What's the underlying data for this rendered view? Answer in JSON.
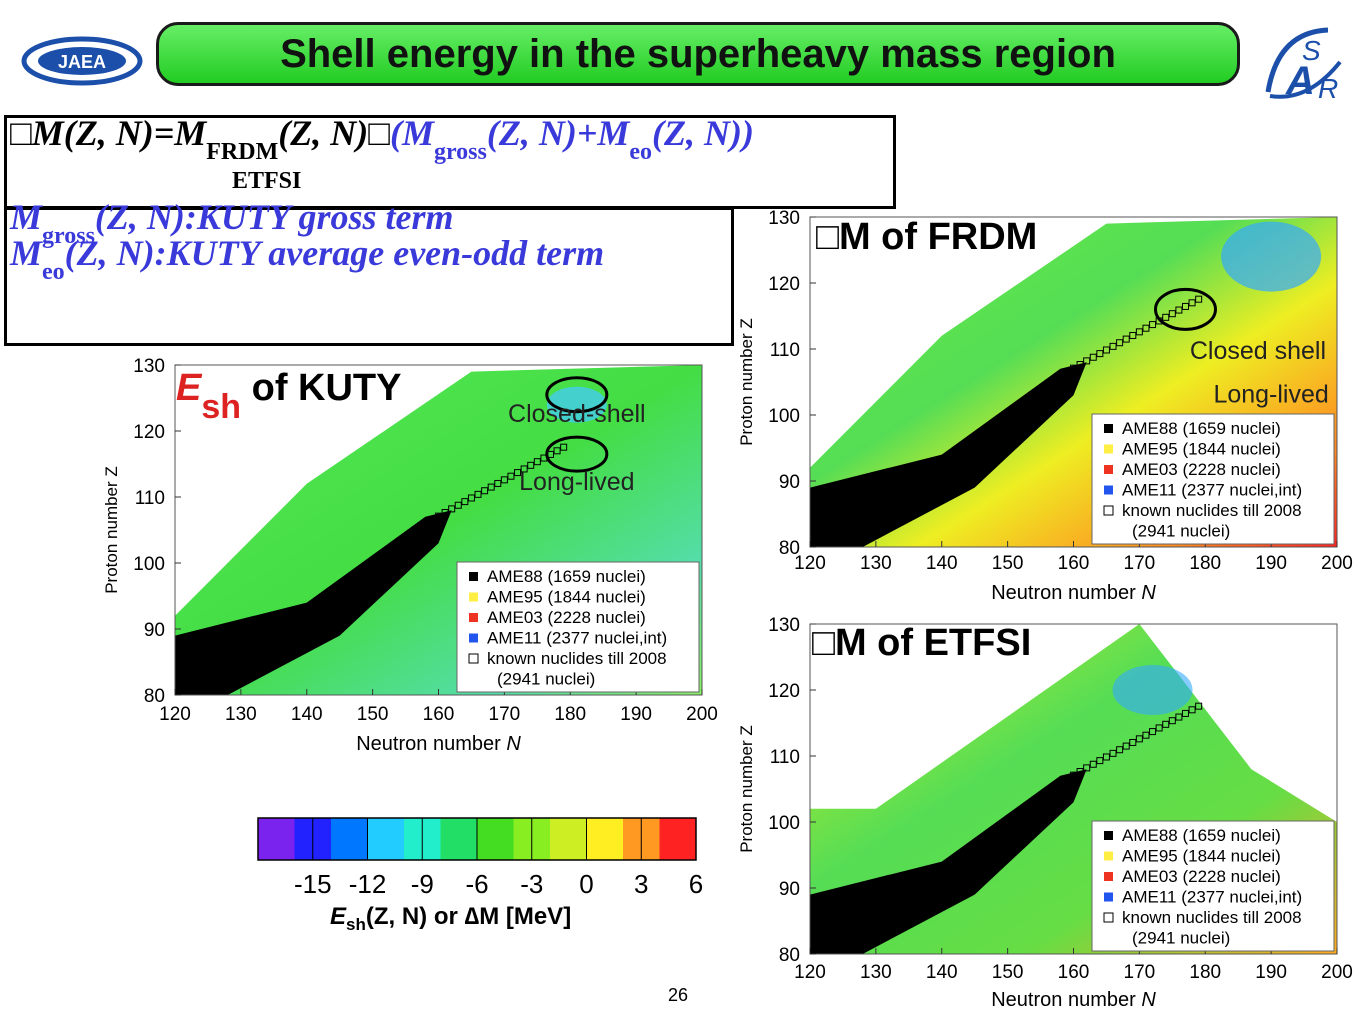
{
  "header": {
    "title": "Shell energy in the superheavy mass region",
    "left_logo": "JAEA"
  },
  "equation": {
    "line1_prefix": "M(Z, N)=M",
    "line1_sub1": "FRDM",
    "line1_mid": "(Z, N)",
    "line1_paren": "(M",
    "line1_sub2": "gross",
    "line1_mid2": "(Z, N)+M",
    "line1_sub3": "eo",
    "line1_end": "(Z, N))",
    "etfsi_label": "ETFSI",
    "box_symbol": "□",
    "gross_desc_a": "M",
    "gross_desc_sub": "gross",
    "gross_desc_b": "(Z, N):KUTY gross term",
    "eo_desc_a": "M",
    "eo_desc_sub": "eo",
    "eo_desc_b": "(Z, N):KUTY average even-odd term"
  },
  "chart_data": [
    {
      "type": "heatmap",
      "title": "E_sh of KUTY",
      "title_main": "E",
      "title_sub": "sh",
      "title_rest": " of KUTY",
      "xlabel": "Neutron number",
      "xlabel_var": "N",
      "ylabel": "Proton number Z",
      "xlim": [
        120,
        200
      ],
      "ylim": [
        80,
        130
      ],
      "xticks": [
        "120",
        "130",
        "140",
        "150",
        "160",
        "170",
        "180",
        "190",
        "200"
      ],
      "yticks": [
        "80",
        "90",
        "100",
        "110",
        "120",
        "130"
      ],
      "annotations": [
        "Closed-shell",
        "Long-lived"
      ],
      "legend": [
        "AME88 (1659 nuclei)",
        "AME95 (1844 nuclei)",
        "AME03 (2228 nuclei)",
        "AME11 (2377 nuclei,int)",
        "known nuclides till 2008",
        "(2941 nuclei)"
      ],
      "legend_position": "bottom-right"
    },
    {
      "type": "heatmap",
      "title": "M of FRDM",
      "title_box": "□",
      "title_text": "M of FRDM",
      "xlabel": "Neutron number",
      "xlabel_var": "N",
      "ylabel": "Proton number Z",
      "xlim": [
        120,
        200
      ],
      "ylim": [
        80,
        130
      ],
      "xticks": [
        "120",
        "130",
        "140",
        "150",
        "160",
        "170",
        "180",
        "190",
        "200"
      ],
      "yticks": [
        "80",
        "90",
        "100",
        "110",
        "120",
        "130"
      ],
      "annotations": [
        "Closed shell",
        "Long-lived"
      ],
      "legend": [
        "AME88 (1659 nuclei)",
        "AME95 (1844 nuclei)",
        "AME03 (2228 nuclei)",
        "AME11 (2377 nuclei,int)",
        "known nuclides till 2008",
        "(2941 nuclei)"
      ],
      "legend_position": "bottom-right"
    },
    {
      "type": "heatmap",
      "title": "M of ETFSI",
      "title_box": "□",
      "title_text": "M of ETFSI",
      "xlabel": "Neutron number",
      "xlabel_var": "N",
      "ylabel": "Proton number Z",
      "xlim": [
        120,
        200
      ],
      "ylim": [
        80,
        130
      ],
      "xticks": [
        "120",
        "130",
        "140",
        "150",
        "160",
        "170",
        "180",
        "190",
        "200"
      ],
      "yticks": [
        "80",
        "90",
        "100",
        "110",
        "120",
        "130"
      ],
      "legend": [
        "AME88 (1659 nuclei)",
        "AME95 (1844 nuclei)",
        "AME03 (2228 nuclei)",
        "AME11 (2377 nuclei,int)",
        "known nuclides till 2008",
        "(2941 nuclei)"
      ],
      "legend_position": "bottom-right"
    }
  ],
  "colorbar": {
    "ticks": [
      "-15",
      "-12",
      "-9",
      "-6",
      "-3",
      "0",
      "3",
      "6"
    ],
    "range": [
      -18,
      6
    ],
    "colors": [
      "#7a22ee",
      "#2222ff",
      "#0077ff",
      "#22ccff",
      "#22eecc",
      "#22dd66",
      "#44dd22",
      "#88ee22",
      "#ccee22",
      "#ffee22",
      "#ff9922",
      "#ff2222"
    ],
    "label_E": "E",
    "label_sh": "sh",
    "label_rest": "(Z, N) or ∆M [MeV]"
  },
  "legend_colors": {
    "AME88": "#000000",
    "AME95": "#ffee44",
    "AME03": "#ee3322",
    "AME11": "#2255ee"
  },
  "page_number": "26"
}
